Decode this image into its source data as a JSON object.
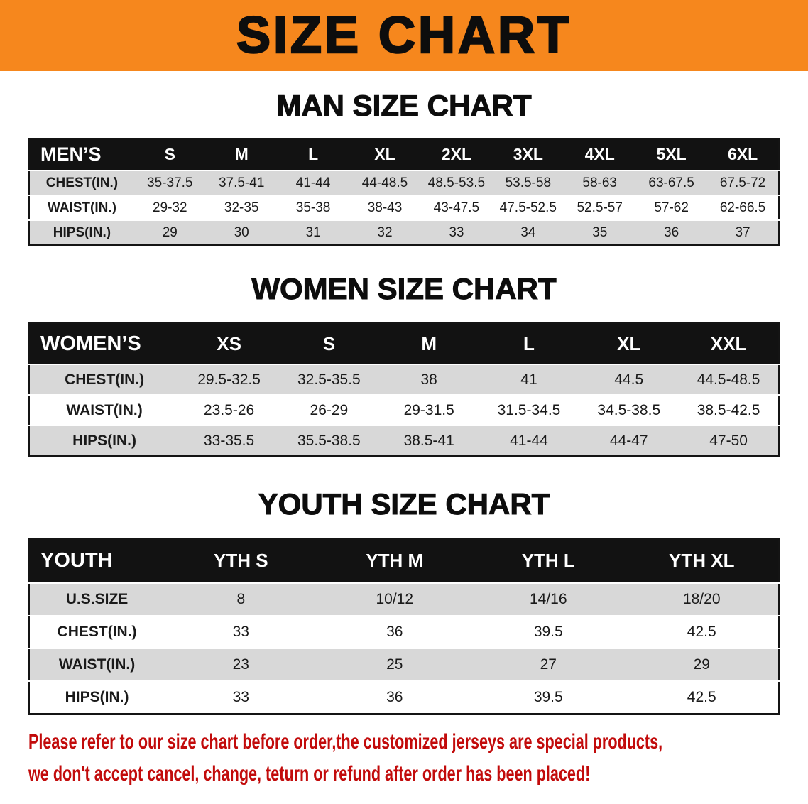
{
  "banner": {
    "title": "SIZE CHART"
  },
  "sections": [
    {
      "heading": "MAN SIZE CHART",
      "table": {
        "header": [
          "MEN’S",
          "S",
          "M",
          "L",
          "XL",
          "2XL",
          "3XL",
          "4XL",
          "5XL",
          "6XL"
        ],
        "rows": [
          [
            "CHEST(IN.)",
            "35-37.5",
            "37.5-41",
            "41-44",
            "44-48.5",
            "48.5-53.5",
            "53.5-58",
            "58-63",
            "63-67.5",
            "67.5-72"
          ],
          [
            "WAIST(IN.)",
            "29-32",
            "32-35",
            "35-38",
            "38-43",
            "43-47.5",
            "47.5-52.5",
            "52.5-57",
            "57-62",
            "62-66.5"
          ],
          [
            "HIPS(IN.)",
            "29",
            "30",
            "31",
            "32",
            "33",
            "34",
            "35",
            "36",
            "37"
          ]
        ]
      }
    },
    {
      "heading": "WOMEN SIZE CHART",
      "table": {
        "header": [
          "WOMEN’S",
          "XS",
          "S",
          "M",
          "L",
          "XL",
          "XXL"
        ],
        "rows": [
          [
            "CHEST(IN.)",
            "29.5-32.5",
            "32.5-35.5",
            "38",
            "41",
            "44.5",
            "44.5-48.5"
          ],
          [
            "WAIST(IN.)",
            "23.5-26",
            "26-29",
            "29-31.5",
            "31.5-34.5",
            "34.5-38.5",
            "38.5-42.5"
          ],
          [
            "HIPS(IN.)",
            "33-35.5",
            "35.5-38.5",
            "38.5-41",
            "41-44",
            "44-47",
            "47-50"
          ]
        ]
      }
    },
    {
      "heading": "YOUTH SIZE CHART",
      "table": {
        "header": [
          "YOUTH",
          "YTH S",
          "YTH M",
          "YTH L",
          "YTH XL"
        ],
        "rows": [
          [
            "U.S.SIZE",
            "8",
            "10/12",
            "14/16",
            "18/20"
          ],
          [
            "CHEST(IN.)",
            "33",
            "36",
            "39.5",
            "42.5"
          ],
          [
            "WAIST(IN.)",
            "23",
            "25",
            "27",
            "29"
          ],
          [
            "HIPS(IN.)",
            "33",
            "36",
            "39.5",
            "42.5"
          ]
        ]
      }
    }
  ],
  "disclaimer": {
    "lines": [
      "Please refer to our size chart before order,the customized jerseys are special products,",
      "we don't accept cancel, change, teturn or refund after order has been placed!"
    ]
  },
  "colors": {
    "banner_bg": "#F6871D",
    "table_header_bg": "#121212",
    "row_alt_bg": "#D8D8D8",
    "disclaimer_red": "#C20B0B"
  }
}
